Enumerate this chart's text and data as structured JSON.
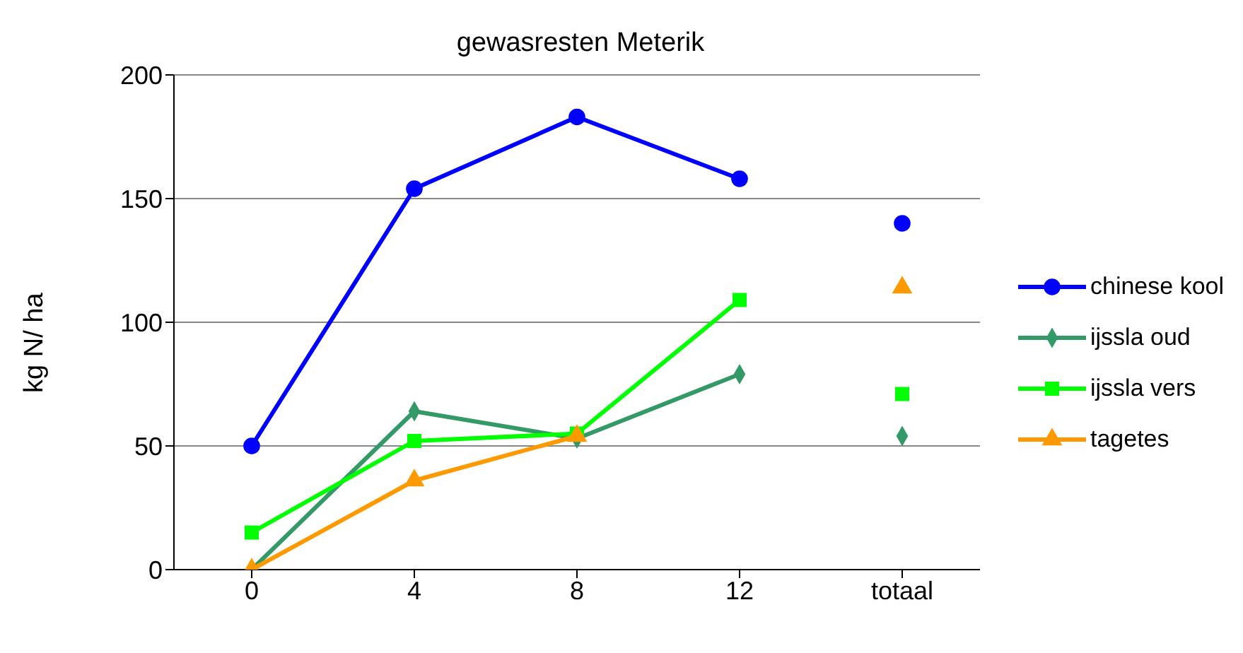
{
  "chart_data": {
    "type": "line",
    "title": "gewasresten Meterik",
    "ylabel": "kg N/ ha",
    "categories": [
      "0",
      "4",
      "8",
      "12",
      "totaal"
    ],
    "ylim": [
      0,
      200
    ],
    "yticks": [
      0,
      50,
      100,
      150,
      200
    ],
    "grid": "y",
    "legend": "right",
    "series": [
      {
        "name": "chinese kool",
        "color": "#0000ff",
        "marker": "circle",
        "values": [
          50,
          154,
          183,
          158,
          null
        ]
      },
      {
        "name": "ijssla oud",
        "color": "#339966",
        "marker": "diamond",
        "values": [
          0,
          64,
          53,
          79,
          null
        ]
      },
      {
        "name": "ijssla vers",
        "color": "#00ff00",
        "marker": "square",
        "values": [
          15,
          52,
          55,
          109,
          null
        ]
      },
      {
        "name": "tagetes",
        "color": "#ff9900",
        "marker": "triangle",
        "values": [
          0,
          36,
          54,
          null,
          null
        ]
      },
      {
        "type": "scatter",
        "color": "#0000ff",
        "marker": "circle",
        "x": [
          "totaal"
        ],
        "values": [
          140
        ]
      },
      {
        "type": "scatter",
        "color": "#339966",
        "marker": "diamond",
        "x": [
          "totaal"
        ],
        "values": [
          54
        ]
      },
      {
        "type": "scatter",
        "color": "#00ff00",
        "marker": "square",
        "x": [
          "totaal"
        ],
        "values": [
          71
        ]
      },
      {
        "type": "scatter",
        "color": "#ff9900",
        "marker": "triangle",
        "x": [
          "totaal"
        ],
        "values": [
          114
        ]
      }
    ]
  }
}
